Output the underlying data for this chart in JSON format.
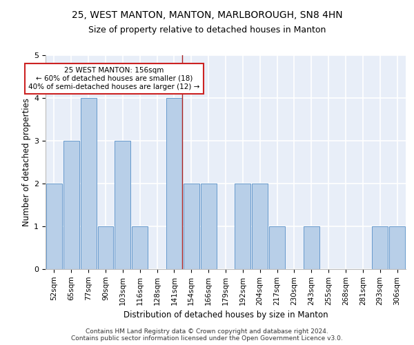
{
  "title_line1": "25, WEST MANTON, MANTON, MARLBOROUGH, SN8 4HN",
  "title_line2": "Size of property relative to detached houses in Manton",
  "xlabel": "Distribution of detached houses by size in Manton",
  "ylabel": "Number of detached properties",
  "categories": [
    "52sqm",
    "65sqm",
    "77sqm",
    "90sqm",
    "103sqm",
    "116sqm",
    "128sqm",
    "141sqm",
    "154sqm",
    "166sqm",
    "179sqm",
    "192sqm",
    "204sqm",
    "217sqm",
    "230sqm",
    "243sqm",
    "255sqm",
    "268sqm",
    "281sqm",
    "293sqm",
    "306sqm"
  ],
  "values": [
    2,
    3,
    4,
    1,
    3,
    1,
    0,
    4,
    2,
    2,
    0,
    2,
    2,
    1,
    0,
    1,
    0,
    0,
    0,
    1,
    1
  ],
  "bar_color": "#b8cfe8",
  "bar_edge_color": "#6699cc",
  "highlight_index": 7,
  "highlight_line_color": "#aa2222",
  "annotation_text": "25 WEST MANTON: 156sqm\n← 60% of detached houses are smaller (18)\n40% of semi-detached houses are larger (12) →",
  "annotation_box_facecolor": "#ffffff",
  "annotation_box_edgecolor": "#cc2222",
  "ylim": [
    0,
    5
  ],
  "yticks": [
    0,
    1,
    2,
    3,
    4,
    5
  ],
  "footer_line1": "Contains HM Land Registry data © Crown copyright and database right 2024.",
  "footer_line2": "Contains public sector information licensed under the Open Government Licence v3.0.",
  "background_color": "#e8eef8",
  "grid_color": "#ffffff",
  "title_fontsize": 10,
  "subtitle_fontsize": 9,
  "axis_label_fontsize": 8.5,
  "tick_fontsize": 7.5,
  "annotation_fontsize": 7.5,
  "footer_fontsize": 6.5
}
